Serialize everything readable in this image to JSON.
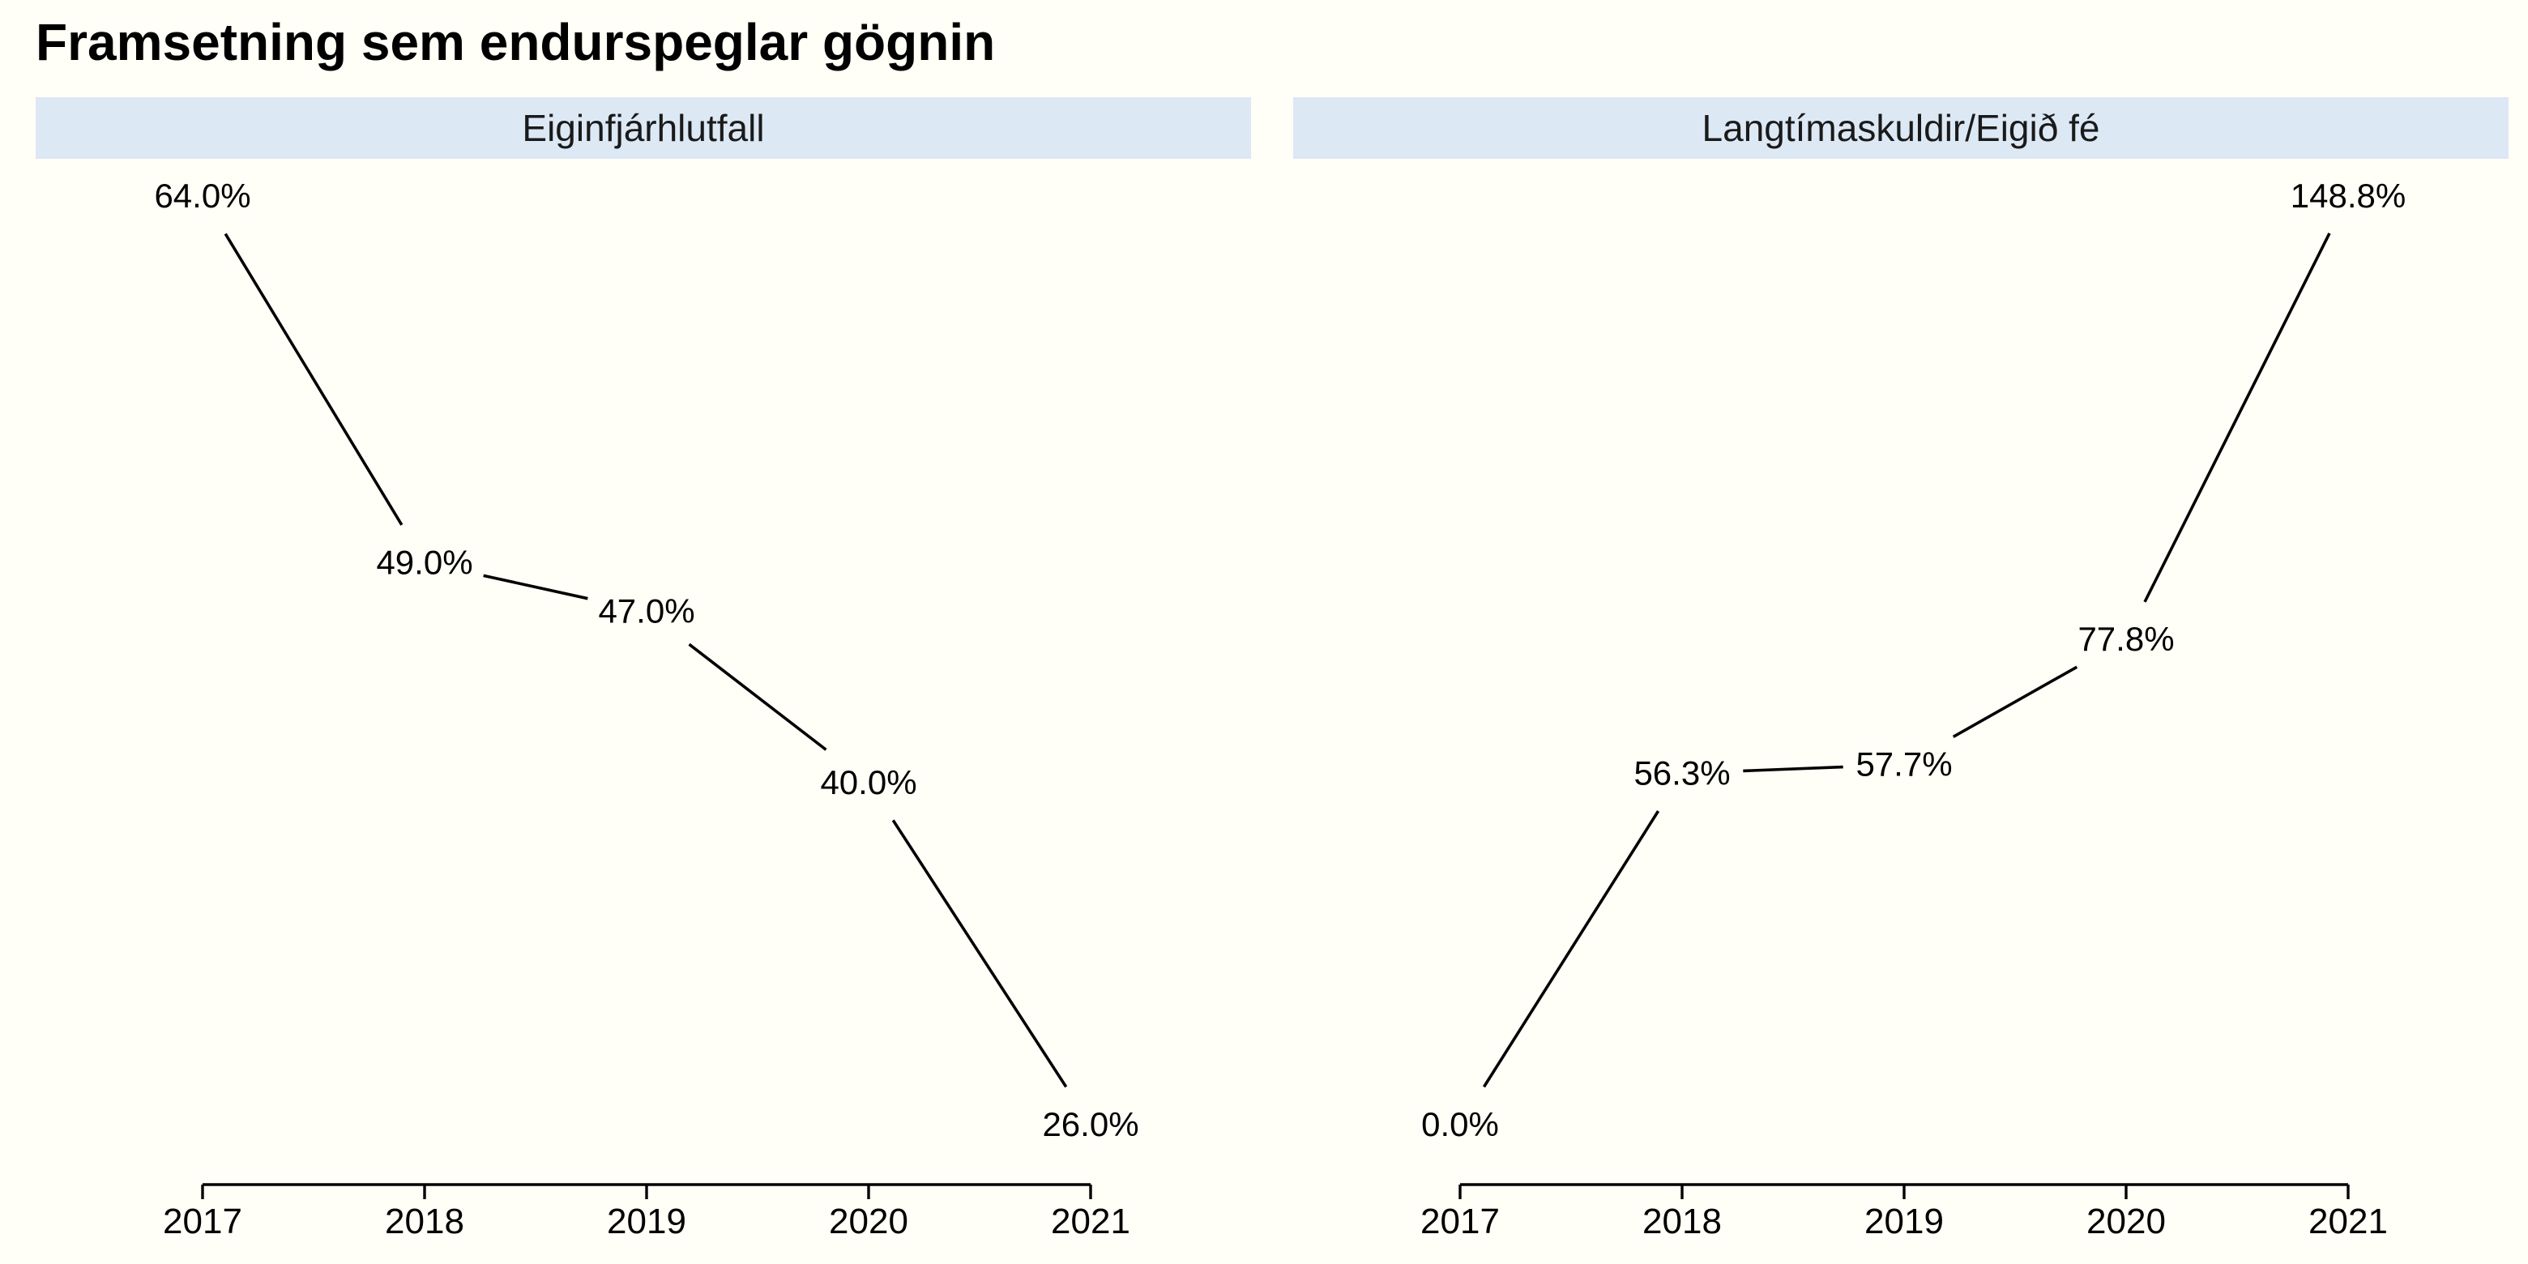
{
  "title": "Framsetning sem endurspeglar gögnin",
  "colors": {
    "background": "#fffef7",
    "strip": "#dde8f5",
    "line": "#000000"
  },
  "chart_data": [
    {
      "type": "line",
      "facet_label": "Eiginfjárhlutfall",
      "x": [
        2017,
        2018,
        2019,
        2020,
        2021
      ],
      "values": [
        64.0,
        49.0,
        47.0,
        40.0,
        26.0
      ],
      "labels": [
        "64.0%",
        "49.0%",
        "47.0%",
        "40.0%",
        "26.0%"
      ],
      "xticks": [
        "2017",
        "2018",
        "2019",
        "2020",
        "2021"
      ],
      "xlabel": "",
      "ylabel": "",
      "grid": false,
      "legend": "none"
    },
    {
      "type": "line",
      "facet_label": "Langtímaskuldir/Eigið fé",
      "x": [
        2017,
        2018,
        2019,
        2020,
        2021
      ],
      "values": [
        0.0,
        56.3,
        57.7,
        77.8,
        148.8
      ],
      "labels": [
        "0.0%",
        "56.3%",
        "57.7%",
        "77.8%",
        "148.8%"
      ],
      "xticks": [
        "2017",
        "2018",
        "2019",
        "2020",
        "2021"
      ],
      "xlabel": "",
      "ylabel": "",
      "grid": false,
      "legend": "none"
    }
  ]
}
